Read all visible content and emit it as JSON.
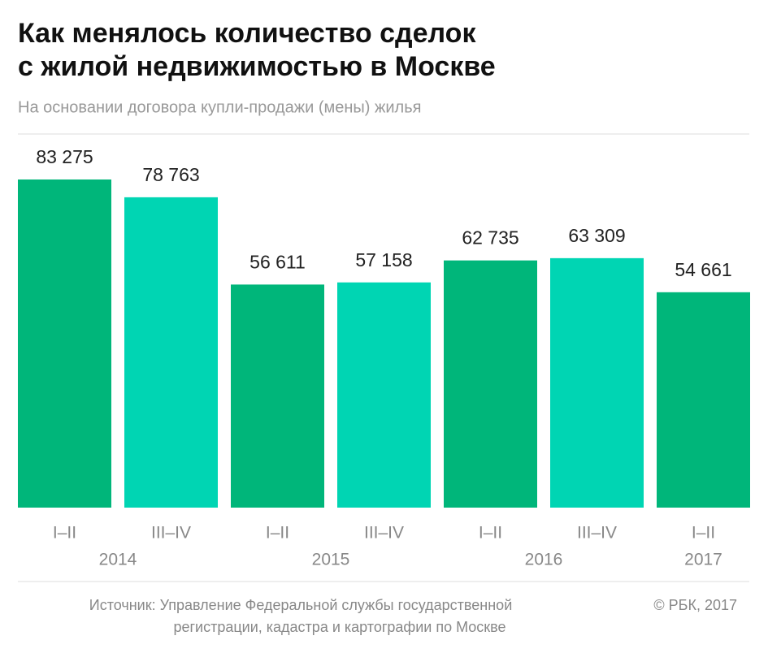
{
  "chart_data": {
    "type": "bar",
    "title": [
      "Как менялось количество сделок",
      "с жилой недвижимостью в Москве"
    ],
    "subtitle": "На основании договора купли-продажи (мены) жилья",
    "categories": [
      "I–II",
      "III–IV",
      "I–II",
      "III–IV",
      "I–II",
      "III–IV",
      "I–II"
    ],
    "years": [
      "2014",
      null,
      "2015",
      null,
      "2016",
      null,
      "2017"
    ],
    "values": [
      83275,
      78763,
      56611,
      57158,
      62735,
      63309,
      54661
    ],
    "value_labels": [
      "83 275",
      "78 763",
      "56 611",
      "57 158",
      "62 735",
      "63 309",
      "54 661"
    ],
    "colors": [
      "#00b67a",
      "#00d5b3",
      "#00b67a",
      "#00d5b3",
      "#00b67a",
      "#00d5b3",
      "#00b67a"
    ],
    "source": [
      "Источник: Управление Федеральной службы государственной",
      "регистрации, кадастра и картографии по Москве"
    ],
    "copyright": "© РБК, 2017"
  }
}
